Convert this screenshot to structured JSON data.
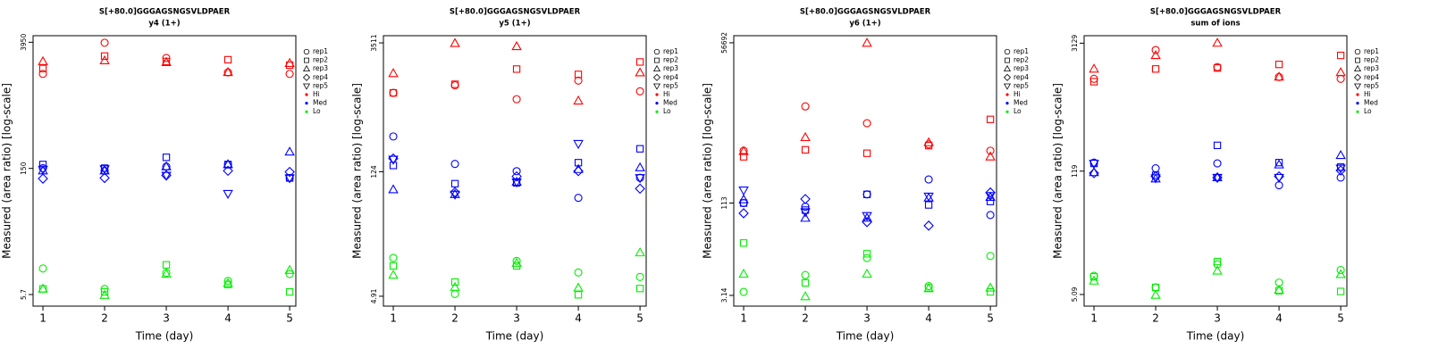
{
  "chart_data": [
    {
      "type": "scatter",
      "title": "S[+80.0]GGGAGSNGSVLDPAER",
      "subtitle": "y4 (1+)",
      "x_label": "Time (day)",
      "y_label": "Measured (area ratio) [log-scale]",
      "log_y": true,
      "x": [
        1,
        2,
        3,
        4,
        5
      ],
      "xlim": [
        0.84,
        5.1
      ],
      "xticks": [
        1,
        2,
        3,
        4,
        5
      ],
      "ylim": [
        4.22,
        4680
      ],
      "yticks": [
        5.7,
        150,
        3950
      ],
      "markers": [
        {
          "name": "rep1",
          "shape": "circle"
        },
        {
          "name": "rep2",
          "shape": "square"
        },
        {
          "name": "rep3",
          "shape": "triangle"
        },
        {
          "name": "rep4",
          "shape": "diamond"
        },
        {
          "name": "rep5",
          "shape": "triangle-down"
        }
      ],
      "groups": [
        {
          "name": "Hi",
          "color": "#ff0000",
          "values": [
            [
              1740,
              3900,
              2630,
              1810,
              1740
            ],
            [
              2000,
              2760,
              2400,
              2510,
              2180
            ],
            [
              2400,
              2450,
              2340,
              1810,
              2290
            ],
            [
              null,
              null,
              null,
              null,
              null
            ],
            [
              null,
              null,
              null,
              null,
              null
            ]
          ]
        },
        {
          "name": "Med",
          "color": "#0000ff",
          "values": [
            [
              151,
              141,
              157,
              166,
              117
            ],
            [
              166,
              151,
              200,
              166,
              117
            ],
            [
              141,
              141,
              157,
              166,
              230
            ],
            [
              115,
              117,
              125,
              141,
              137
            ],
            [
              146,
              148,
              125,
              78,
              117
            ]
          ]
        },
        {
          "name": "Lo",
          "color": "#00ee00",
          "values": [
            [
              11.2,
              6.6,
              10,
              8.1,
              9.7
            ],
            [
              6.6,
              6.1,
              12.3,
              7.4,
              6.1
            ],
            [
              6.6,
              5.6,
              9.7,
              7.6,
              10.7
            ],
            [
              null,
              null,
              null,
              null,
              null
            ],
            [
              null,
              null,
              null,
              null,
              null
            ]
          ]
        }
      ]
    },
    {
      "type": "scatter",
      "title": "S[+80.0]GGGAGSNGSVLDPAER",
      "subtitle": "y5 (1+)",
      "x_label": "Time (day)",
      "y_label": "Measured (area ratio) [log-scale]",
      "log_y": true,
      "x": [
        1,
        2,
        3,
        4,
        5
      ],
      "xlim": [
        0.84,
        5.1
      ],
      "xticks": [
        1,
        2,
        3,
        4,
        5
      ],
      "ylim": [
        3.8,
        4230
      ],
      "yticks": [
        4.91,
        124,
        3511
      ],
      "markers": [
        {
          "name": "rep1",
          "shape": "circle"
        },
        {
          "name": "rep2",
          "shape": "square"
        },
        {
          "name": "rep3",
          "shape": "triangle"
        },
        {
          "name": "rep4",
          "shape": "diamond"
        },
        {
          "name": "rep5",
          "shape": "triangle-down"
        }
      ],
      "groups": [
        {
          "name": "Hi",
          "color": "#ff0000",
          "values": [
            [
              960,
              1170,
              815,
              1320,
              1000
            ],
            [
              960,
              1200,
              1780,
              1550,
              2140
            ],
            [
              1590,
              3470,
              3200,
              780,
              1620
            ],
            [
              null,
              null,
              null,
              null,
              null
            ],
            [
              null,
              null,
              null,
              null,
              null
            ]
          ]
        },
        {
          "name": "Med",
          "color": "#0000ff",
          "values": [
            [
              310,
              152,
              126,
              63,
              106
            ],
            [
              146,
              91,
              93,
              157,
              225
            ],
            [
              78,
              69,
              95,
              132,
              138
            ],
            [
              175,
              73,
              110,
              126,
              80
            ],
            [
              171,
              69,
              95,
              257,
              106
            ]
          ]
        },
        {
          "name": "Lo",
          "color": "#00ee00",
          "values": [
            [
              13.3,
              5.2,
              12.3,
              9.1,
              8.1
            ],
            [
              10.8,
              7.1,
              10.8,
              5.1,
              6.0
            ],
            [
              8.5,
              6.2,
              11.6,
              6.1,
              15.2
            ],
            [
              null,
              null,
              null,
              null,
              null
            ],
            [
              null,
              null,
              null,
              null,
              null
            ]
          ]
        }
      ]
    },
    {
      "type": "scatter",
      "title": "S[+80.0]GGGAGSNGSVLDPAER",
      "subtitle": "y6 (1+)",
      "x_label": "Time (day)",
      "y_label": "Measured (area ratio) [log-scale]",
      "log_y": true,
      "x": [
        1,
        2,
        3,
        4,
        5
      ],
      "xlim": [
        0.84,
        5.1
      ],
      "xticks": [
        1,
        2,
        3,
        4,
        5
      ],
      "ylim": [
        2.07,
        74600
      ],
      "yticks": [
        3.14,
        113,
        56692
      ],
      "markers": [
        {
          "name": "rep1",
          "shape": "circle"
        },
        {
          "name": "rep2",
          "shape": "square"
        },
        {
          "name": "rep3",
          "shape": "triangle"
        },
        {
          "name": "rep4",
          "shape": "diamond"
        },
        {
          "name": "rep5",
          "shape": "triangle-down"
        }
      ],
      "groups": [
        {
          "name": "Hi",
          "color": "#ff0000",
          "values": [
            [
              860,
              4800,
              2500,
              1100,
              860
            ],
            [
              680,
              890,
              780,
              1050,
              2900
            ],
            [
              840,
              1440,
              56000,
              1180,
              680
            ],
            [
              null,
              null,
              null,
              null,
              null
            ],
            [
              null,
              null,
              null,
              null,
              null
            ]
          ]
        },
        {
          "name": "Med",
          "color": "#0000ff",
          "values": [
            [
              113,
              98,
              158,
              282,
              71
            ],
            [
              113,
              86,
              158,
              105,
              120
            ],
            [
              129,
              63,
              63,
              138,
              142
            ],
            [
              76,
              132,
              54,
              47,
              170
            ],
            [
              186,
              80,
              69,
              147,
              150
            ]
          ]
        },
        {
          "name": "Lo",
          "color": "#00ee00",
          "values": [
            [
              3.6,
              6.9,
              13.4,
              4.5,
              14.5
            ],
            [
              24,
              5.1,
              15.8,
              4.2,
              3.6
            ],
            [
              7.2,
              3.0,
              7.2,
              4.1,
              4.2
            ],
            [
              null,
              null,
              null,
              null,
              null
            ],
            [
              null,
              null,
              null,
              null,
              null
            ]
          ]
        }
      ]
    },
    {
      "type": "scatter",
      "title": "S[+80.0]GGGAGSNGSVLDPAER",
      "subtitle": "sum of ions",
      "x_label": "Time (day)",
      "y_label": "Measured (area ratio) [log-scale]",
      "log_y": true,
      "x": [
        1,
        2,
        3,
        4,
        5
      ],
      "xlim": [
        0.84,
        5.1
      ],
      "xticks": [
        1,
        2,
        3,
        4,
        5
      ],
      "ylim": [
        3.78,
        3790
      ],
      "yticks": [
        5.09,
        119,
        3129
      ],
      "markers": [
        {
          "name": "rep1",
          "shape": "circle"
        },
        {
          "name": "rep2",
          "shape": "square"
        },
        {
          "name": "rep3",
          "shape": "triangle"
        },
        {
          "name": "rep4",
          "shape": "diamond"
        },
        {
          "name": "rep5",
          "shape": "triangle-down"
        }
      ],
      "groups": [
        {
          "name": "Hi",
          "color": "#ff0000",
          "values": [
            [
              1260,
              2630,
              1700,
              1320,
              1260
            ],
            [
              1170,
              1620,
              1660,
              1820,
              2290
            ],
            [
              1620,
              2290,
              3140,
              1320,
              1480
            ],
            [
              null,
              null,
              null,
              null,
              null
            ],
            [
              null,
              null,
              null,
              null,
              null
            ]
          ]
        },
        {
          "name": "Med",
          "color": "#0000ff",
          "values": [
            [
              148,
              128,
              145,
              83,
              101
            ],
            [
              145,
              107,
              230,
              148,
              132
            ],
            [
              115,
              98,
              101,
              140,
              178
            ],
            [
              113,
              104,
              101,
              104,
              121
            ],
            [
              145,
              100,
              101,
              101,
              128
            ]
          ]
        },
        {
          "name": "Lo",
          "color": "#00ee00",
          "values": [
            [
              8.2,
              6.1,
              11.0,
              6.9,
              9.5
            ],
            [
              8.0,
              6.1,
              11.8,
              5.6,
              5.5
            ],
            [
              7.2,
              5.0,
              9.3,
              5.7,
              8.5
            ],
            [
              null,
              null,
              null,
              null,
              null
            ],
            [
              null,
              null,
              null,
              null,
              null
            ]
          ]
        }
      ]
    }
  ]
}
